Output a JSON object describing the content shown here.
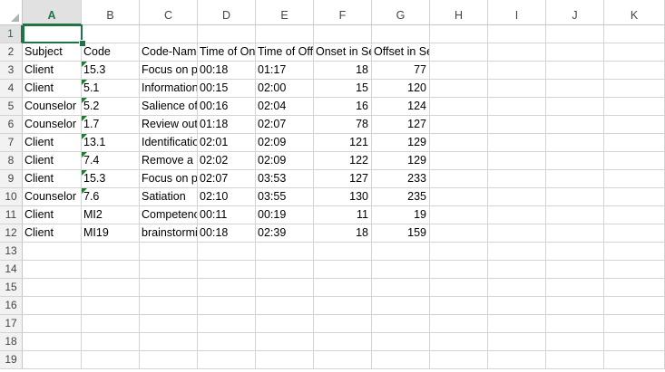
{
  "columns": [
    "A",
    "B",
    "C",
    "D",
    "E",
    "F",
    "G",
    "H",
    "I",
    "J",
    "K"
  ],
  "selected_column": "A",
  "selected_row": "1",
  "rows": [
    {
      "n": "1",
      "cells": [
        "",
        "",
        "",
        "",
        "",
        "",
        "",
        "",
        "",
        "",
        ""
      ]
    },
    {
      "n": "2",
      "cells": [
        "Subject",
        "Code",
        "Code-Name",
        "Time of Onset",
        "Time of Offset",
        "Onset in Secs",
        "Offset in Secs",
        "",
        "",
        "",
        ""
      ]
    },
    {
      "n": "3",
      "cells": [
        "Client",
        "15.3",
        "Focus on problem",
        "00:18",
        "01:17",
        "18",
        "77",
        "",
        "",
        "",
        ""
      ]
    },
    {
      "n": "4",
      "cells": [
        "Client",
        "5.1",
        "Information",
        "00:15",
        "02:00",
        "15",
        "120",
        "",
        "",
        "",
        ""
      ]
    },
    {
      "n": "5",
      "cells": [
        "Counselor",
        "5.2",
        "Salience of",
        "00:16",
        "02:04",
        "16",
        "124",
        "",
        "",
        "",
        ""
      ]
    },
    {
      "n": "6",
      "cells": [
        "Counselor",
        "1.7",
        "Review outcome",
        "01:18",
        "02:07",
        "78",
        "127",
        "",
        "",
        "",
        ""
      ]
    },
    {
      "n": "7",
      "cells": [
        "Client",
        "13.1",
        "Identification",
        "02:01",
        "02:09",
        "121",
        "129",
        "",
        "",
        "",
        ""
      ]
    },
    {
      "n": "8",
      "cells": [
        "Client",
        "7.4",
        "Remove a",
        "02:02",
        "02:09",
        "122",
        "129",
        "",
        "",
        "",
        ""
      ]
    },
    {
      "n": "9",
      "cells": [
        "Client",
        "15.3",
        "Focus on problem",
        "02:07",
        "03:53",
        "127",
        "233",
        "",
        "",
        "",
        ""
      ]
    },
    {
      "n": "10",
      "cells": [
        "Counselor",
        "7.6",
        "Satiation",
        "02:10",
        "03:55",
        "130",
        "235",
        "",
        "",
        "",
        ""
      ]
    },
    {
      "n": "11",
      "cells": [
        "Client",
        "MI2",
        "Competence",
        "00:11",
        "00:19",
        "11",
        "19",
        "",
        "",
        "",
        ""
      ]
    },
    {
      "n": "12",
      "cells": [
        "Client",
        "MI19",
        "brainstorming",
        "00:18",
        "02:39",
        "18",
        "159",
        "",
        "",
        "",
        ""
      ]
    },
    {
      "n": "13",
      "cells": [
        "",
        "",
        "",
        "",
        "",
        "",
        "",
        "",
        "",
        "",
        ""
      ]
    },
    {
      "n": "14",
      "cells": [
        "",
        "",
        "",
        "",
        "",
        "",
        "",
        "",
        "",
        "",
        ""
      ]
    },
    {
      "n": "15",
      "cells": [
        "",
        "",
        "",
        "",
        "",
        "",
        "",
        "",
        "",
        "",
        ""
      ]
    },
    {
      "n": "16",
      "cells": [
        "",
        "",
        "",
        "",
        "",
        "",
        "",
        "",
        "",
        "",
        ""
      ]
    },
    {
      "n": "17",
      "cells": [
        "",
        "",
        "",
        "",
        "",
        "",
        "",
        "",
        "",
        "",
        ""
      ]
    },
    {
      "n": "18",
      "cells": [
        "",
        "",
        "",
        "",
        "",
        "",
        "",
        "",
        "",
        "",
        ""
      ]
    },
    {
      "n": "19",
      "cells": [
        "",
        "",
        "",
        "",
        "",
        "",
        "",
        "",
        "",
        "",
        ""
      ]
    }
  ],
  "text_marker_rows": [
    "3",
    "4",
    "5",
    "6",
    "7",
    "8",
    "9",
    "10"
  ],
  "accent_color": "#217346",
  "marker_color": "#1e7a30"
}
